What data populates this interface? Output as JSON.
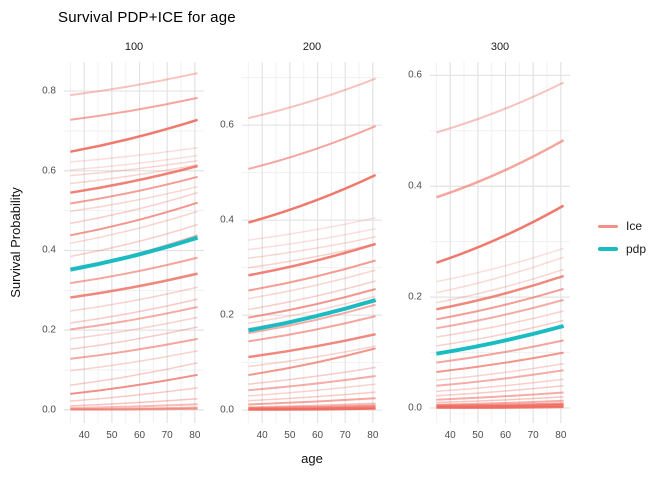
{
  "chart_data": {
    "type": "line",
    "title": "Survival PDP+ICE for age",
    "xlabel": "age",
    "ylabel": "Survival Probability",
    "xlim": [
      32.7,
      83.3
    ],
    "x_line_span": [
      35,
      81
    ],
    "xticks": [
      40,
      50,
      60,
      70,
      80
    ],
    "xticks_minor": [
      35,
      45,
      55,
      65,
      75
    ],
    "grid": true,
    "legend_position": "right",
    "legend": [
      {
        "label": "Ice",
        "series": "ice"
      },
      {
        "label": "pdp",
        "series": "pdp"
      }
    ],
    "colors": {
      "ice": "#ee6a5e",
      "pdp": "#1abcc2",
      "grid_major": "#e3e3e3",
      "grid_minor": "#f1f1f1",
      "axis_text": "#4d4d4d",
      "title_text": "#000000"
    },
    "facets": [
      {
        "label": "100",
        "ylim": [
          -0.033,
          0.873
        ],
        "yticks": [
          0.0,
          0.2,
          0.4,
          0.6,
          0.8
        ],
        "yticks_minor": [
          0.1,
          0.3,
          0.5,
          0.7
        ],
        "pdp": [
          0.352,
          0.432
        ],
        "ice": [
          [
            0.79,
            0.845,
            2,
            0.4
          ],
          [
            0.728,
            0.783,
            2,
            0.6
          ],
          [
            0.648,
            0.728,
            2.5,
            0.9
          ],
          [
            0.622,
            0.658,
            1.5,
            0.22
          ],
          [
            0.602,
            0.638,
            1.5,
            0.22
          ],
          [
            0.588,
            0.625,
            1.5,
            0.28
          ],
          [
            0.568,
            0.615,
            1.5,
            0.3
          ],
          [
            0.545,
            0.612,
            2.5,
            0.85
          ],
          [
            0.518,
            0.585,
            2,
            0.65
          ],
          [
            0.498,
            0.56,
            1.5,
            0.28
          ],
          [
            0.468,
            0.545,
            1.5,
            0.32
          ],
          [
            0.438,
            0.52,
            2,
            0.7
          ],
          [
            0.418,
            0.498,
            1.5,
            0.28
          ],
          [
            0.385,
            0.465,
            1.5,
            0.32
          ],
          [
            0.352,
            0.438,
            2,
            0.55
          ],
          [
            0.318,
            0.382,
            2,
            0.6
          ],
          [
            0.282,
            0.342,
            2.5,
            0.8
          ],
          [
            0.248,
            0.308,
            1.5,
            0.3
          ],
          [
            0.218,
            0.278,
            1.5,
            0.35
          ],
          [
            0.202,
            0.258,
            2,
            0.55
          ],
          [
            0.178,
            0.232,
            1.5,
            0.3
          ],
          [
            0.152,
            0.208,
            1.5,
            0.35
          ],
          [
            0.128,
            0.178,
            2,
            0.6
          ],
          [
            0.098,
            0.148,
            1.5,
            0.3
          ],
          [
            0.062,
            0.118,
            1.5,
            0.35
          ],
          [
            0.04,
            0.088,
            2,
            0.75
          ],
          [
            0.022,
            0.055,
            1.5,
            0.35
          ],
          [
            0.01,
            0.028,
            1.5,
            0.4
          ],
          [
            0.005,
            0.014,
            2,
            0.45
          ],
          [
            0.002,
            0.006,
            2,
            0.55
          ],
          [
            0.001,
            0.003,
            2,
            0.6
          ]
        ]
      },
      {
        "label": "200",
        "ylim": [
          -0.027,
          0.733
        ],
        "yticks": [
          0.0,
          0.2,
          0.4,
          0.6
        ],
        "yticks_minor": [
          0.1,
          0.3,
          0.5,
          0.7
        ],
        "pdp": [
          0.168,
          0.232
        ],
        "ice": [
          [
            0.615,
            0.698,
            2,
            0.4
          ],
          [
            0.508,
            0.598,
            2,
            0.6
          ],
          [
            0.395,
            0.495,
            2.5,
            0.9
          ],
          [
            0.358,
            0.405,
            1.5,
            0.22
          ],
          [
            0.338,
            0.382,
            1.5,
            0.22
          ],
          [
            0.32,
            0.365,
            1.5,
            0.28
          ],
          [
            0.3,
            0.35,
            1.5,
            0.3
          ],
          [
            0.284,
            0.35,
            2.5,
            0.85
          ],
          [
            0.252,
            0.315,
            2,
            0.65
          ],
          [
            0.235,
            0.295,
            1.5,
            0.28
          ],
          [
            0.212,
            0.272,
            1.5,
            0.32
          ],
          [
            0.195,
            0.255,
            2,
            0.7
          ],
          [
            0.183,
            0.24,
            1.5,
            0.28
          ],
          [
            0.172,
            0.228,
            1.5,
            0.32
          ],
          [
            0.162,
            0.222,
            2,
            0.55
          ],
          [
            0.145,
            0.198,
            2,
            0.6
          ],
          [
            0.112,
            0.16,
            2.5,
            0.8
          ],
          [
            0.092,
            0.135,
            1.5,
            0.3
          ],
          [
            0.074,
            0.13,
            2,
            0.7
          ],
          [
            0.055,
            0.09,
            1.5,
            0.35
          ],
          [
            0.042,
            0.072,
            2,
            0.55
          ],
          [
            0.03,
            0.055,
            1.5,
            0.3
          ],
          [
            0.02,
            0.038,
            1.5,
            0.35
          ],
          [
            0.012,
            0.025,
            2,
            0.6
          ],
          [
            0.006,
            0.014,
            2,
            0.45
          ],
          [
            0.004,
            0.009,
            2.5,
            0.7
          ],
          [
            0.002,
            0.005,
            2.5,
            0.85
          ],
          [
            0.001,
            0.003,
            2,
            0.9
          ]
        ]
      },
      {
        "label": "300",
        "ylim": [
          -0.027,
          0.624
        ],
        "yticks": [
          0.0,
          0.2,
          0.4,
          0.6
        ],
        "yticks_minor": [
          0.1,
          0.3,
          0.5
        ],
        "pdp": [
          0.098,
          0.148
        ],
        "ice": [
          [
            0.497,
            0.587,
            2,
            0.4
          ],
          [
            0.38,
            0.483,
            2.5,
            0.6
          ],
          [
            0.262,
            0.365,
            2.5,
            0.9
          ],
          [
            0.228,
            0.288,
            1.5,
            0.22
          ],
          [
            0.208,
            0.272,
            1.5,
            0.25
          ],
          [
            0.19,
            0.25,
            1.5,
            0.28
          ],
          [
            0.178,
            0.238,
            2.5,
            0.8
          ],
          [
            0.16,
            0.215,
            2,
            0.65
          ],
          [
            0.144,
            0.195,
            2,
            0.55
          ],
          [
            0.128,
            0.175,
            1.5,
            0.3
          ],
          [
            0.112,
            0.158,
            1.5,
            0.32
          ],
          [
            0.082,
            0.122,
            2,
            0.6
          ],
          [
            0.065,
            0.1,
            2,
            0.7
          ],
          [
            0.05,
            0.08,
            1.5,
            0.3
          ],
          [
            0.04,
            0.068,
            2,
            0.55
          ],
          [
            0.03,
            0.052,
            1.5,
            0.32
          ],
          [
            0.022,
            0.04,
            1.5,
            0.35
          ],
          [
            0.015,
            0.028,
            2,
            0.55
          ],
          [
            0.01,
            0.02,
            1.5,
            0.4
          ],
          [
            0.006,
            0.013,
            2,
            0.55
          ],
          [
            0.004,
            0.008,
            2.5,
            0.7
          ],
          [
            0.002,
            0.005,
            3,
            0.85
          ],
          [
            0.001,
            0.002,
            2.5,
            0.9
          ]
        ]
      }
    ]
  }
}
